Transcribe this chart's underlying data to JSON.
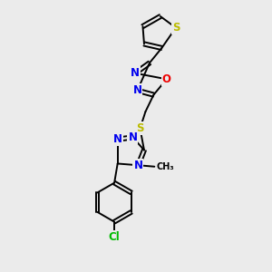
{
  "background_color": "#ebebeb",
  "bond_color": "#000000",
  "atom_colors": {
    "N": "#0000ee",
    "O": "#ee0000",
    "S": "#bbbb00",
    "Cl": "#00bb00",
    "C": "#000000"
  },
  "figure_size": [
    3.0,
    3.0
  ],
  "dpi": 100
}
